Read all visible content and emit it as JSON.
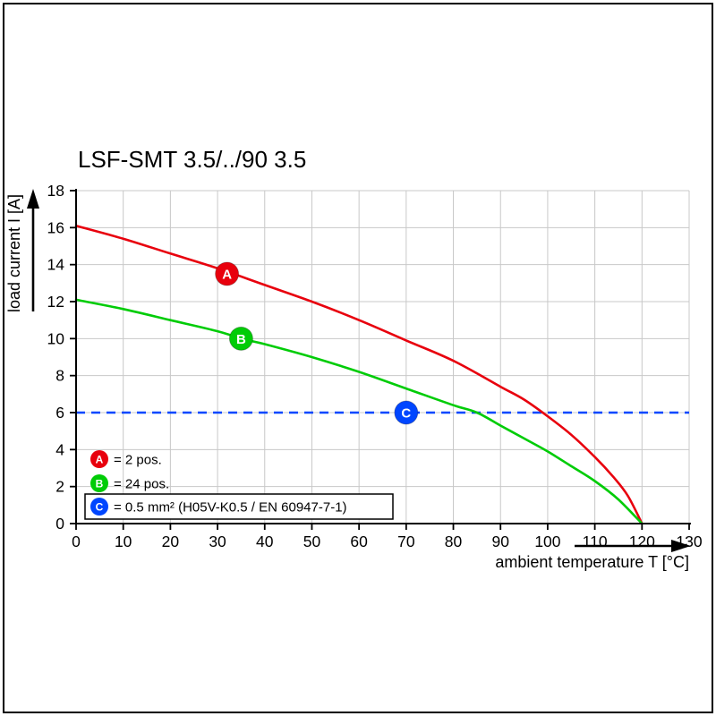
{
  "chart_data": {
    "type": "line",
    "title": "LSF-SMT 3.5/../90 3.5",
    "xlabel": "ambient temperature T [°C]",
    "ylabel": "load current I [A]",
    "xlim": [
      0,
      130
    ],
    "ylim": [
      0,
      18
    ],
    "xticks": [
      0,
      10,
      20,
      30,
      40,
      50,
      60,
      70,
      80,
      90,
      100,
      110,
      120,
      130
    ],
    "yticks": [
      0,
      2,
      4,
      6,
      8,
      10,
      12,
      14,
      16,
      18
    ],
    "grid": true,
    "grid_color": "#c8c8c8",
    "legend_position": "bottom-left-inside",
    "legend_boxed_entry": "C",
    "series": [
      {
        "name": "A",
        "legend_label": "= 2 pos.",
        "color": "#e8000d",
        "style": "solid",
        "marker": {
          "letter": "A",
          "x": 32,
          "y": 13.5
        },
        "points": [
          [
            0,
            16.1
          ],
          [
            10,
            15.4
          ],
          [
            20,
            14.6
          ],
          [
            30,
            13.8
          ],
          [
            40,
            12.9
          ],
          [
            50,
            12.0
          ],
          [
            60,
            11.0
          ],
          [
            70,
            9.9
          ],
          [
            80,
            8.8
          ],
          [
            90,
            7.4
          ],
          [
            95,
            6.7
          ],
          [
            100,
            5.8
          ],
          [
            105,
            4.8
          ],
          [
            110,
            3.6
          ],
          [
            114,
            2.5
          ],
          [
            117,
            1.5
          ],
          [
            120,
            0
          ]
        ]
      },
      {
        "name": "B",
        "legend_label": "= 24 pos.",
        "color": "#00cc07",
        "style": "solid",
        "marker": {
          "letter": "B",
          "x": 35,
          "y": 10
        },
        "points": [
          [
            0,
            12.1
          ],
          [
            10,
            11.6
          ],
          [
            20,
            11.0
          ],
          [
            30,
            10.4
          ],
          [
            35,
            10.0
          ],
          [
            40,
            9.7
          ],
          [
            50,
            9.0
          ],
          [
            60,
            8.2
          ],
          [
            70,
            7.3
          ],
          [
            80,
            6.4
          ],
          [
            85,
            6.0
          ],
          [
            90,
            5.3
          ],
          [
            95,
            4.6
          ],
          [
            100,
            3.9
          ],
          [
            105,
            3.1
          ],
          [
            110,
            2.3
          ],
          [
            115,
            1.3
          ],
          [
            120,
            0
          ]
        ]
      },
      {
        "name": "C",
        "legend_label": "= 0.5 mm² (H05V-K0.5 / EN 60947-7-1)",
        "color": "#0046ff",
        "style": "dashed",
        "marker": {
          "letter": "C",
          "x": 70,
          "y": 6
        },
        "points": [
          [
            0,
            6
          ],
          [
            130,
            6
          ]
        ]
      }
    ]
  }
}
